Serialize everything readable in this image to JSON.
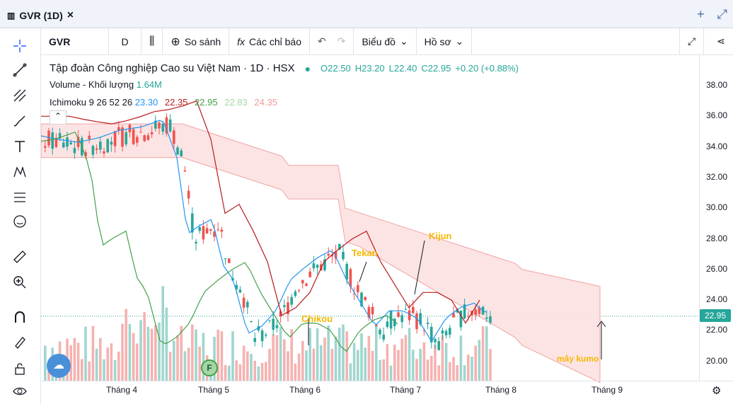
{
  "window": {
    "title": "GVR (1D)",
    "close": "×",
    "plus": "+",
    "expand": "⤢"
  },
  "toolbar": {
    "symbol": "GVR",
    "interval": "D",
    "compare": "So sánh",
    "indicators": "Các chỉ báo",
    "chart_type": "Biểu đồ",
    "profile": "Hồ sơ"
  },
  "legend": {
    "name": "Tập đoàn Công nghiệp Cao su Việt Nam · 1D · HSX",
    "open": "O22.50",
    "high": "H23.20",
    "low": "L22.40",
    "close": "C22.95",
    "change": "+0.20 (+0.88%)",
    "volume_label": "Volume - Khối lượng",
    "volume_value": "1.64M",
    "ichimoku_label": "Ichimoku 9 26 52 26",
    "ichi_v1": "23.30",
    "ichi_v2": "22.35",
    "ichi_v3": "22.95",
    "ichi_v4": "22.83",
    "ichi_v5": "24.35"
  },
  "colors": {
    "up": "#26a69a",
    "down": "#ef5350",
    "tenkan": "#2196f3",
    "kijun": "#b71c1c",
    "chikou": "#43a047",
    "spanA": "#a5d6a7",
    "spanB": "#ef9a9a"
  },
  "y_ticks": [
    "38.00",
    "36.00",
    "34.00",
    "32.00",
    "30.00",
    "28.00",
    "26.00",
    "24.00",
    "22.00",
    "20.00"
  ],
  "x_ticks": [
    "Tháng 4",
    "Tháng 5",
    "Tháng 6",
    "Tháng 7",
    "Tháng 8",
    "Tháng 9"
  ],
  "last_price": "22.95",
  "annotations": {
    "tekan": "Tekan",
    "kijun": "Kijun",
    "chikou": "Chikou",
    "kumo": "mây kumo"
  },
  "event_badge": "F"
}
